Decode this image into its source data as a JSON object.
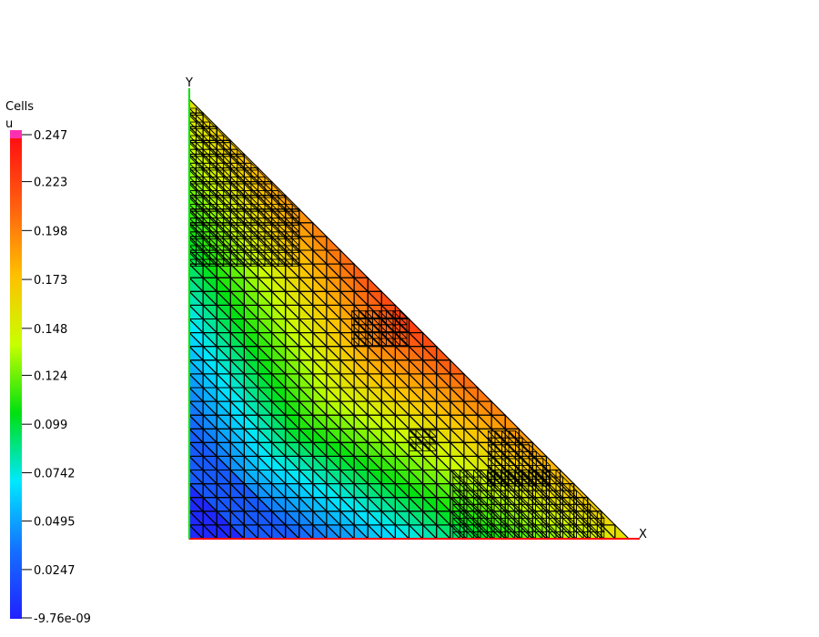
{
  "legend": {
    "title": "Cells",
    "variable": "u",
    "min_value": -9.76e-09,
    "max_value": 0.247,
    "ticks": [
      {
        "value": 0.247,
        "label": "0.247"
      },
      {
        "value": 0.223,
        "label": "0.223"
      },
      {
        "value": 0.198,
        "label": "0.198"
      },
      {
        "value": 0.173,
        "label": "0.173"
      },
      {
        "value": 0.148,
        "label": "0.148"
      },
      {
        "value": 0.124,
        "label": "0.124"
      },
      {
        "value": 0.099,
        "label": "0.099"
      },
      {
        "value": 0.0742,
        "label": "0.0742"
      },
      {
        "value": 0.0495,
        "label": "0.0495"
      },
      {
        "value": 0.0247,
        "label": "0.0247"
      },
      {
        "value": 0.0,
        "label": "-9.76e-09"
      }
    ],
    "colormap": [
      "#2020ff",
      "#1470ff",
      "#00e8ff",
      "#00e010",
      "#c8ff00",
      "#ffc000",
      "#ff6010",
      "#ff1010"
    ],
    "overflow_color": "#ff30b0"
  },
  "axes": {
    "x_label": "X",
    "y_label": "Y",
    "x_axis_color": "#ff0000",
    "y_axis_color": "#00e000"
  },
  "mesh": {
    "edge_color": "#000000"
  }
}
